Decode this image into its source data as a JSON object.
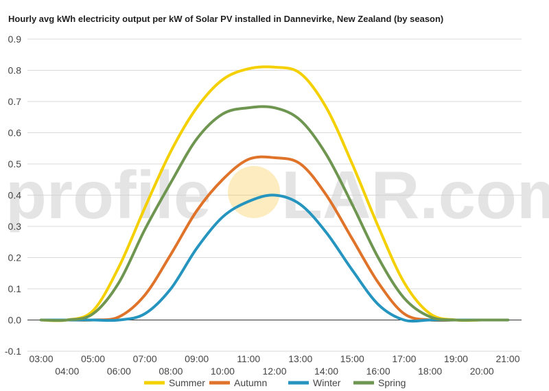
{
  "chart_data": {
    "type": "line",
    "title": "Hourly avg kWh electricity output per kW of Solar PV installed in Dannevirke, New Zealand (by season)",
    "xlabel": "",
    "ylabel": "",
    "x": [
      "03:00",
      "04:00",
      "05:00",
      "06:00",
      "07:00",
      "08:00",
      "09:00",
      "10:00",
      "11:00",
      "12:00",
      "13:00",
      "14:00",
      "15:00",
      "16:00",
      "17:00",
      "18:00",
      "19:00",
      "20:00",
      "21:00"
    ],
    "ylim": [
      -0.1,
      0.9
    ],
    "yticks": [
      "-0.1",
      "0.0",
      "0.1",
      "0.2",
      "0.3",
      "0.4",
      "0.5",
      "0.6",
      "0.7",
      "0.8",
      "0.9"
    ],
    "grid": true,
    "legend_position": "bottom",
    "series": [
      {
        "name": "Summer",
        "color": "#f5d000",
        "values": [
          0.0,
          0.0,
          0.03,
          0.17,
          0.36,
          0.54,
          0.68,
          0.77,
          0.805,
          0.81,
          0.79,
          0.68,
          0.5,
          0.3,
          0.12,
          0.02,
          0.0,
          0.0,
          0.0
        ]
      },
      {
        "name": "Autumn",
        "color": "#e0732a",
        "values": [
          0.0,
          0.0,
          0.0,
          0.01,
          0.08,
          0.21,
          0.35,
          0.45,
          0.515,
          0.52,
          0.5,
          0.4,
          0.26,
          0.12,
          0.02,
          0.0,
          0.0,
          0.0,
          0.0
        ]
      },
      {
        "name": "Winter",
        "color": "#2595bf",
        "values": [
          0.0,
          0.0,
          0.0,
          0.0,
          0.02,
          0.1,
          0.23,
          0.33,
          0.38,
          0.4,
          0.37,
          0.28,
          0.16,
          0.05,
          0.0,
          0.0,
          0.0,
          0.0,
          0.0
        ]
      },
      {
        "name": "Spring",
        "color": "#6e9650",
        "values": [
          0.0,
          0.0,
          0.02,
          0.12,
          0.29,
          0.44,
          0.58,
          0.66,
          0.68,
          0.68,
          0.64,
          0.53,
          0.37,
          0.2,
          0.07,
          0.01,
          0.0,
          0.0,
          0.0
        ]
      }
    ]
  },
  "watermark": {
    "left": "profile",
    "right": "LAR.com",
    "sun_color": "#f7c948"
  }
}
